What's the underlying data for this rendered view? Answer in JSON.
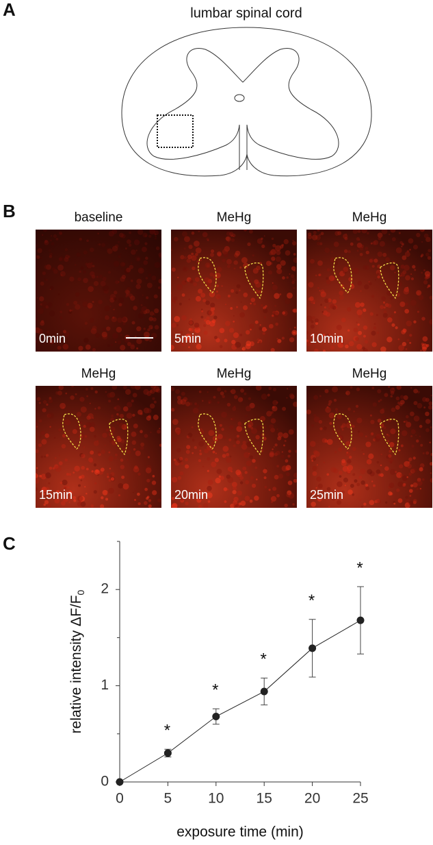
{
  "panels": {
    "a": {
      "label": "A",
      "title": "lumbar spinal cord"
    },
    "b": {
      "label": "B",
      "images": [
        {
          "title": "baseline",
          "time": "0min"
        },
        {
          "title": "MeHg",
          "time": "5min"
        },
        {
          "title": "MeHg",
          "time": "10min"
        },
        {
          "title": "MeHg",
          "time": "15min"
        },
        {
          "title": "MeHg",
          "time": "20min"
        },
        {
          "title": "MeHg",
          "time": "25min"
        }
      ]
    },
    "c": {
      "label": "C"
    }
  },
  "chart_data": {
    "type": "line",
    "x": [
      0,
      5,
      10,
      15,
      20,
      25
    ],
    "values": [
      0,
      0.3,
      0.68,
      0.94,
      1.39,
      1.68
    ],
    "errors": [
      0,
      0.04,
      0.08,
      0.14,
      0.3,
      0.35
    ],
    "annotations": [
      null,
      "*",
      "*",
      "*",
      "*",
      "*"
    ],
    "color": "#222",
    "xlabel": "exposure time (min)",
    "ylabel": "relative intensity ΔF/F",
    "ylabel_subscript": "0",
    "xlim": [
      0,
      25
    ],
    "ylim": [
      0,
      2.5
    ],
    "xticks": [
      0,
      5,
      10,
      15,
      20,
      25
    ],
    "yticks": [
      0,
      1,
      2
    ],
    "yminorticks": [
      0.5,
      1.5,
      2.5
    ]
  }
}
